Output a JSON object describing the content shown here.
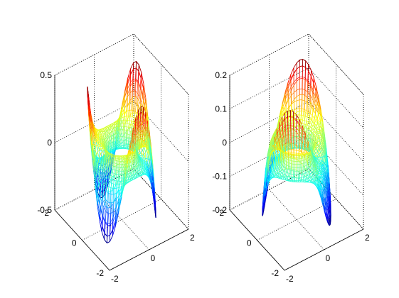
{
  "figure": {
    "background": "#ffffff",
    "colormap": "jet",
    "colors": {
      "low": "#00008f",
      "mid_low": "#0080ff",
      "mid": "#7fff7f",
      "mid_high": "#ffff00",
      "high": "#800000",
      "box": "#000000"
    }
  },
  "chart_data": [
    {
      "type": "mesh3d",
      "title": "",
      "xlabel": "",
      "ylabel": "",
      "zlabel": "",
      "surface": "perturbed torus (3-lobed), mesh lines colored by z",
      "xlim": [
        -2,
        2
      ],
      "ylim": [
        -2,
        2
      ],
      "zlim": [
        -0.5,
        0.5
      ],
      "x_ticks": [
        "-2",
        "0",
        "2"
      ],
      "y_ticks": [
        "-2",
        "0",
        "2"
      ],
      "z_ticks": [
        "-0.5",
        "0",
        "0.5"
      ],
      "lobes": 3,
      "z_range": [
        -0.5,
        0.5
      ],
      "grid": true,
      "box": true
    },
    {
      "type": "mesh3d",
      "title": "",
      "xlabel": "",
      "ylabel": "",
      "zlabel": "",
      "surface": "perturbed torus (2-lobed), mesh lines colored by z",
      "xlim": [
        -2,
        2
      ],
      "ylim": [
        -2,
        2
      ],
      "zlim": [
        -0.2,
        0.2
      ],
      "x_ticks": [
        "-2",
        "0",
        "2"
      ],
      "y_ticks": [
        "-2",
        "0",
        "2"
      ],
      "z_ticks": [
        "-0.2",
        "-0.1",
        "0",
        "0.1",
        "0.2"
      ],
      "lobes": 2,
      "z_range": [
        -0.2,
        0.2
      ],
      "grid": true,
      "box": true
    }
  ]
}
